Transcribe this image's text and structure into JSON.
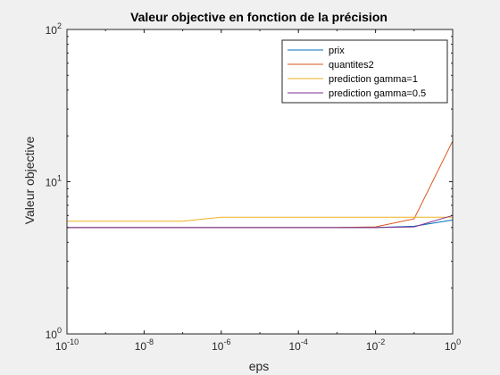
{
  "chart_data": {
    "type": "line",
    "title": "Valeur objective en fonction de la précision",
    "xlabel": "eps",
    "ylabel": "Valeur objective",
    "xscale": "log",
    "yscale": "log",
    "xlim": [
      1e-10,
      1
    ],
    "ylim": [
      1,
      100
    ],
    "grid": false,
    "legend_position": "top-right",
    "x_ticks": [
      {
        "value": 1e-10,
        "base": "10",
        "exp": "-10"
      },
      {
        "value": 1e-08,
        "base": "10",
        "exp": "-8"
      },
      {
        "value": 1e-06,
        "base": "10",
        "exp": "-6"
      },
      {
        "value": 0.0001,
        "base": "10",
        "exp": "-4"
      },
      {
        "value": 0.01,
        "base": "10",
        "exp": "-2"
      },
      {
        "value": 1,
        "base": "10",
        "exp": "0"
      }
    ],
    "y_ticks": [
      {
        "value": 1,
        "base": "10",
        "exp": "0"
      },
      {
        "value": 10,
        "base": "10",
        "exp": "1"
      },
      {
        "value": 100,
        "base": "10",
        "exp": "2"
      }
    ],
    "series": [
      {
        "name": "prix",
        "color": "#0072bd",
        "x": [
          1e-10,
          1e-09,
          1e-08,
          1e-07,
          1e-06,
          1e-05,
          0.0001,
          0.001,
          0.01,
          0.1,
          1
        ],
        "y": [
          5.0,
          5.0,
          5.0,
          5.0,
          5.0,
          5.0,
          5.0,
          5.0,
          5.0,
          5.1,
          5.6
        ]
      },
      {
        "name": "quantites2",
        "color": "#d95319",
        "x": [
          1e-10,
          1e-09,
          1e-08,
          1e-07,
          1e-06,
          1e-05,
          0.0001,
          0.001,
          0.01,
          0.1,
          1
        ],
        "y": [
          5.0,
          5.0,
          5.0,
          5.0,
          5.0,
          5.0,
          5.0,
          5.0,
          5.05,
          5.7,
          18.5
        ]
      },
      {
        "name": "prediction gamma=1",
        "color": "#edb120",
        "x": [
          1e-10,
          1e-09,
          1e-08,
          1e-07,
          1e-06,
          1e-05,
          0.0001,
          0.001,
          0.01,
          0.1,
          1
        ],
        "y": [
          5.5,
          5.5,
          5.5,
          5.5,
          5.85,
          5.85,
          5.85,
          5.85,
          5.85,
          5.85,
          5.85
        ]
      },
      {
        "name": "prediction gamma=0.5",
        "color": "#7e2f8e",
        "x": [
          1e-10,
          1e-09,
          1e-08,
          1e-07,
          1e-06,
          1e-05,
          0.0001,
          0.001,
          0.01,
          0.1,
          1
        ],
        "y": [
          5.0,
          5.0,
          5.0,
          5.0,
          5.0,
          5.0,
          5.0,
          5.0,
          5.0,
          5.05,
          6.0
        ]
      }
    ]
  }
}
